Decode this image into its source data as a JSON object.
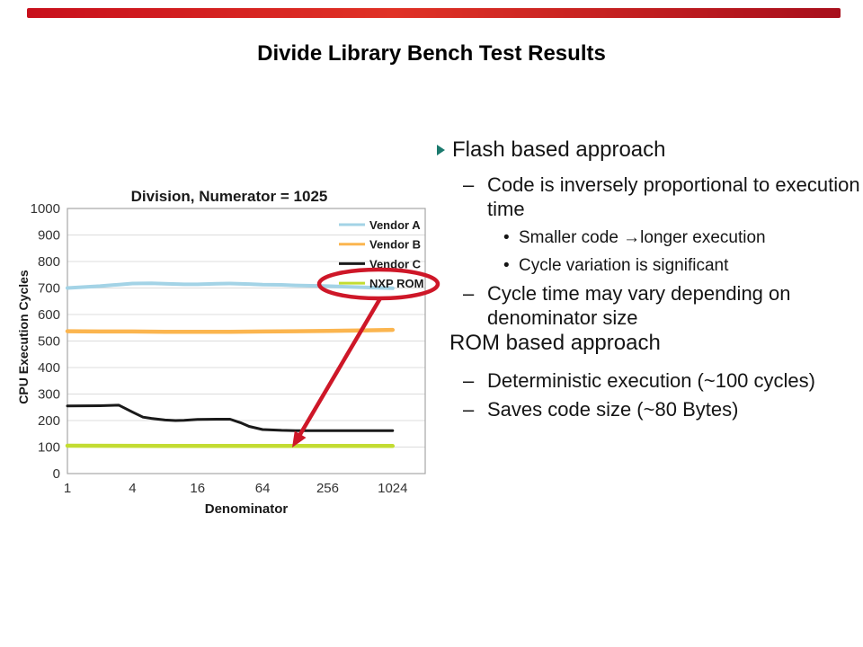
{
  "top_bar": {
    "color_left": "#c8101c",
    "color_mid": "#e03226",
    "color_right": "#a80f1c"
  },
  "header": {
    "title": "Divide Library Bench Test Results"
  },
  "chart_data": {
    "type": "line",
    "title": "Division, Numerator = 1025",
    "xlabel": "Denominator",
    "ylabel": "CPU Execution Cycles",
    "x_scale": "log",
    "xlim": [
      1,
      2048
    ],
    "ylim": [
      0,
      1000
    ],
    "x_ticks": [
      "1",
      "4",
      "16",
      "64",
      "256",
      "1024"
    ],
    "y_ticks": [
      1000,
      900,
      800,
      700,
      600,
      500,
      400,
      300,
      200,
      100,
      0
    ],
    "grid": true,
    "legend_position": "top-right-inside",
    "series": [
      {
        "name": "Vendor A",
        "color": "#a3d3e6",
        "width": 4,
        "points": [
          [
            1,
            700
          ],
          [
            2,
            707
          ],
          [
            3,
            713
          ],
          [
            4,
            717
          ],
          [
            6,
            718
          ],
          [
            8,
            716
          ],
          [
            12,
            714
          ],
          [
            16,
            714
          ],
          [
            24,
            716
          ],
          [
            32,
            717
          ],
          [
            48,
            715
          ],
          [
            64,
            713
          ],
          [
            96,
            712
          ],
          [
            128,
            710
          ],
          [
            256,
            707
          ],
          [
            512,
            703
          ],
          [
            1024,
            699
          ]
        ]
      },
      {
        "name": "Vendor B",
        "color": "#fbb54f",
        "width": 4.5,
        "points": [
          [
            1,
            537
          ],
          [
            2,
            536
          ],
          [
            4,
            536
          ],
          [
            8,
            535
          ],
          [
            16,
            535
          ],
          [
            32,
            535
          ],
          [
            64,
            536
          ],
          [
            128,
            537
          ],
          [
            256,
            538
          ],
          [
            512,
            540
          ],
          [
            1024,
            542
          ]
        ]
      },
      {
        "name": "Vendor C",
        "color": "#1a1a1a",
        "width": 3,
        "points": [
          [
            1,
            255
          ],
          [
            2,
            256
          ],
          [
            3,
            258
          ],
          [
            4,
            232
          ],
          [
            5,
            213
          ],
          [
            6,
            208
          ],
          [
            8,
            202
          ],
          [
            10,
            200
          ],
          [
            12,
            201
          ],
          [
            16,
            204
          ],
          [
            24,
            205
          ],
          [
            32,
            205
          ],
          [
            40,
            192
          ],
          [
            48,
            178
          ],
          [
            64,
            166
          ],
          [
            96,
            163
          ],
          [
            128,
            162
          ],
          [
            256,
            162
          ],
          [
            512,
            162
          ],
          [
            1024,
            162
          ]
        ]
      },
      {
        "name": "NXP ROM",
        "color": "#c3dc32",
        "width": 4.5,
        "points": [
          [
            1,
            105
          ],
          [
            8,
            104
          ],
          [
            64,
            104
          ],
          [
            256,
            104
          ],
          [
            1024,
            104
          ]
        ]
      }
    ],
    "annotation": {
      "label": "NXP ROM",
      "color": "#ce1728",
      "description": "red ellipse around NXP ROM legend entry with arrow pointing at NXP ROM line near denominator 118, cycles 100"
    }
  },
  "bullets": [
    {
      "level": 1,
      "marker": "triangle",
      "text": "Flash based approach"
    },
    {
      "level": 2,
      "marker": "–",
      "text": "Code is inversely proportional to execution time"
    },
    {
      "level": 3,
      "marker": "•",
      "text": "Smaller code →longer execution"
    },
    {
      "level": 3,
      "marker": "•",
      "text": "Cycle variation is significant"
    },
    {
      "level": 2,
      "marker": "–",
      "text": "Cycle time may vary depending on denominator size"
    },
    {
      "level": 1,
      "marker": "",
      "text": "ROM based approach"
    },
    {
      "level": 2,
      "marker": "–",
      "text": "Deterministic execution (~100 cycles)"
    },
    {
      "level": 2,
      "marker": "–",
      "text": "Saves code size (~80 Bytes)"
    }
  ]
}
